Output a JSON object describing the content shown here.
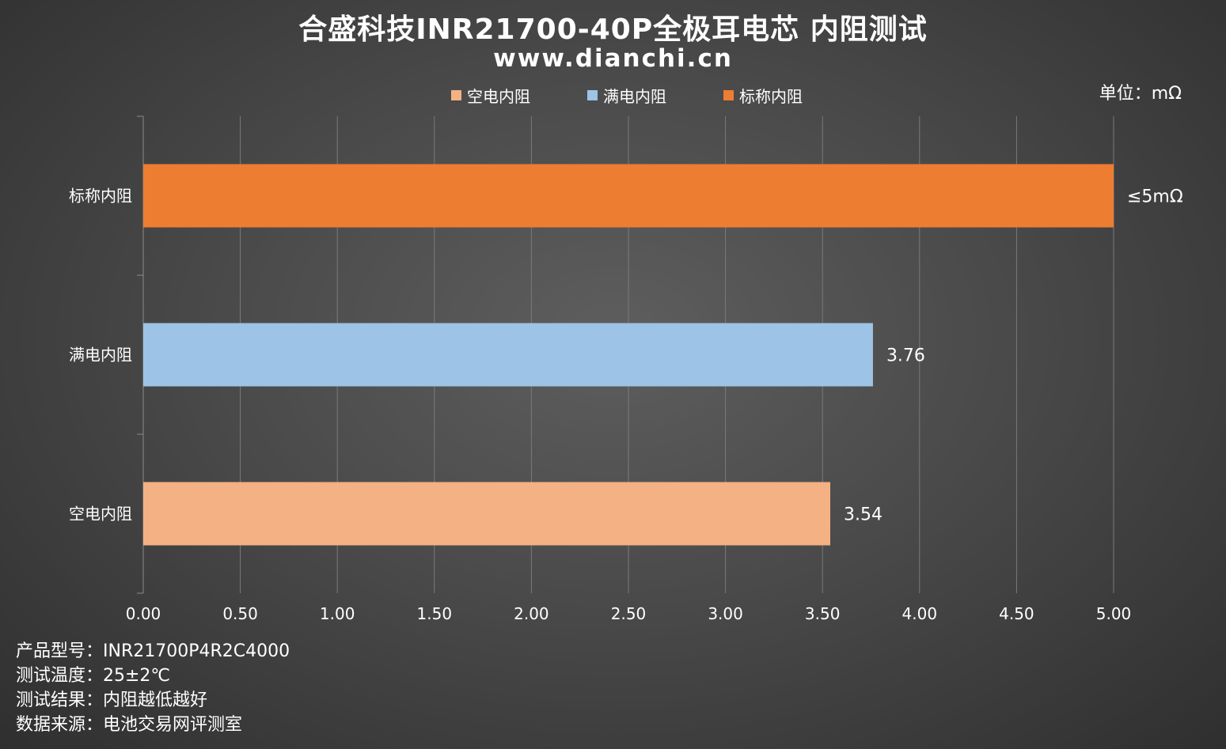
{
  "title": "合盛科技INR21700-40P全极耳电芯 内阻测试",
  "subtitle": "www.dianchi.cn",
  "unit": "单位：mΩ",
  "legend": [
    {
      "label": "空电内阻",
      "color": "#F4B183"
    },
    {
      "label": "满电内阻",
      "color": "#9DC3E6"
    },
    {
      "label": "标称内阻",
      "color": "#ED7D31"
    }
  ],
  "notes": [
    "产品型号：INR21700P4R2C4000",
    "测试温度：25±2℃",
    "测试结果：内阻越低越好",
    "数据来源：电池交易网评测室"
  ],
  "chart_data": {
    "type": "bar",
    "orientation": "horizontal",
    "categories": [
      "标称内阻",
      "满电内阻",
      "空电内阻"
    ],
    "values": [
      5.0,
      3.76,
      3.54
    ],
    "value_labels": [
      "≤5mΩ",
      "3.76",
      "3.54"
    ],
    "colors": [
      "#ED7D31",
      "#9DC3E6",
      "#F4B183"
    ],
    "xlim": [
      0,
      5
    ],
    "xticks": [
      "0.00",
      "0.50",
      "1.00",
      "1.50",
      "2.00",
      "2.50",
      "3.00",
      "3.50",
      "4.00",
      "4.50",
      "5.00"
    ],
    "grid": true
  }
}
